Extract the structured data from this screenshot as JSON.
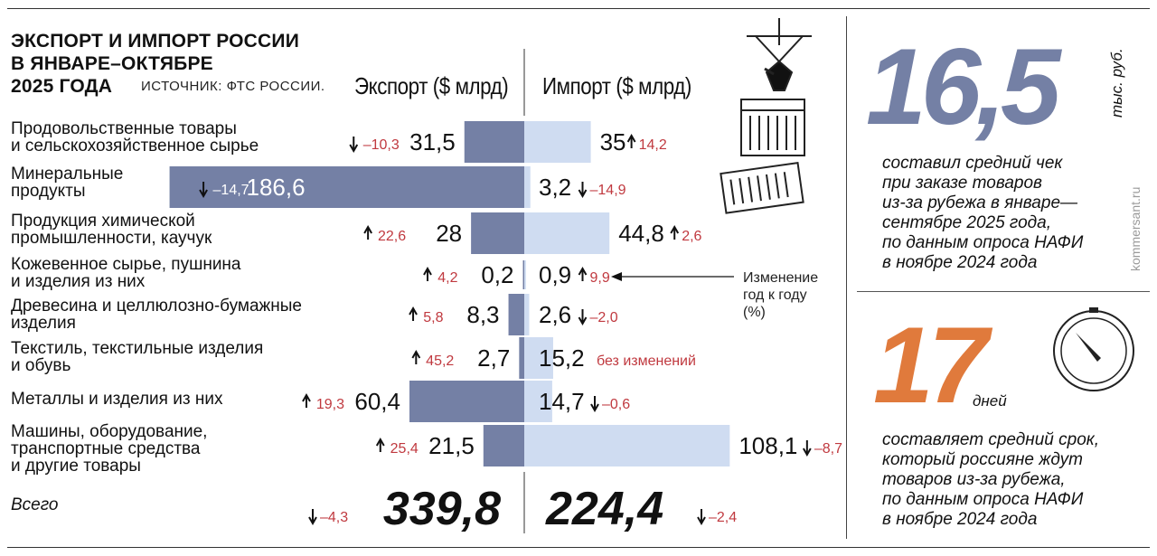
{
  "title_lines": [
    "ЭКСПОРТ И ИМПОРТ РОССИИ",
    "В ЯНВАРЕ–ОКТЯБРЕ",
    "2025 ГОДА"
  ],
  "source": "ИСТОЧНИК: ФТС РОССИИ.",
  "colors": {
    "export_bar": "#7480a5",
    "import_bar": "#cfdcf1",
    "change": "#c0393f",
    "orange": "#e07a3c",
    "stat_blue": "#7480a5"
  },
  "chart_data": {
    "type": "bar",
    "orientation": "horizontal-diverging",
    "export_header": "Экспорт ($ млрд)",
    "import_header": "Импорт ($ млрд)",
    "categories": [
      [
        "Продовольственные товары",
        "и сельскохозяйственное сырье"
      ],
      [
        "Минеральные",
        "продукты"
      ],
      [
        "Продукция химической",
        "промышленности, каучук"
      ],
      [
        "Кожевенное сырье, пушнина",
        "и изделия из них"
      ],
      [
        "Древесина и целлюлозно-бумажные",
        "изделия"
      ],
      [
        "Текстиль, текстильные изделия",
        "и обувь"
      ],
      [
        "Металлы и изделия из них"
      ],
      [
        "Машины, оборудование,",
        "транспортные средства",
        "и другие товары"
      ]
    ],
    "series": [
      {
        "name": "Экспорт ($ млрд)",
        "values": [
          31.5,
          186.6,
          28,
          0.2,
          8.3,
          2.7,
          60.4,
          21.5
        ],
        "labels": [
          "31,5",
          "186,6",
          "28",
          "0,2",
          "8,3",
          "2,7",
          "60,4",
          "21,5"
        ],
        "change_labels": [
          "–10,3",
          "–14,7",
          "22,6",
          "4,2",
          "5,8",
          "45,2",
          "19,3",
          "25,4"
        ],
        "change_dir": [
          "down",
          "down",
          "up",
          "up",
          "up",
          "up",
          "up",
          "up"
        ]
      },
      {
        "name": "Импорт ($ млрд)",
        "values": [
          35,
          3.2,
          44.8,
          0.9,
          2.6,
          15.2,
          14.7,
          108.1
        ],
        "labels": [
          "35",
          "3,2",
          "44,8",
          "0,9",
          "2,6",
          "15,2",
          "14,7",
          "108,1"
        ],
        "change_labels": [
          "14,2",
          "–14,9",
          "2,6",
          "9,9",
          "–2,0",
          "без изменений",
          "–0,6",
          "–8,7"
        ],
        "change_dir": [
          "up",
          "down",
          "up",
          "up",
          "down",
          "none",
          "down",
          "down"
        ]
      }
    ],
    "annotation": [
      "Изменение",
      "год к году",
      "(%)"
    ],
    "total": {
      "label": "Всего",
      "export": "339,8",
      "export_change": "–4,3",
      "export_dir": "down",
      "import": "224,4",
      "import_change": "–2,4",
      "import_dir": "down"
    }
  },
  "stats": [
    {
      "number": "16,5",
      "unit": "тыс. руб.",
      "lines": [
        "составил средний чек",
        "при заказе товаров",
        "из-за рубежа в январе—",
        "сентябре 2025 года,",
        "по данным опроса НАФИ",
        "в ноябре 2024 года"
      ]
    },
    {
      "number": "17",
      "unit": "дней",
      "lines": [
        "составляет средний срок,",
        "который россияне ждут",
        "товаров из-за рубежа,",
        "по данным опроса НАФИ",
        "в ноябре 2024 года"
      ]
    }
  ],
  "watermark": "kommersant.ru",
  "icons": [
    "container-crane-icon",
    "cargo-container-icon",
    "stopwatch-icon"
  ]
}
